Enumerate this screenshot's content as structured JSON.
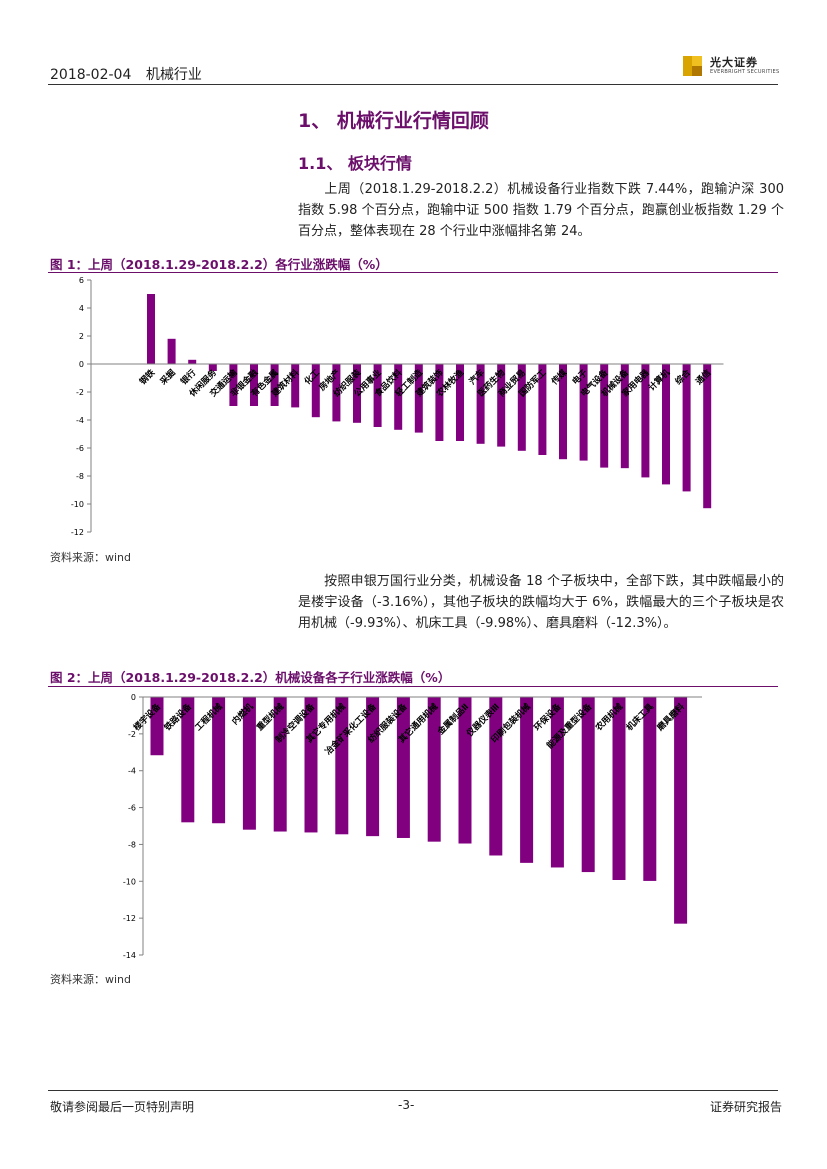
{
  "header": {
    "date": "2018-02-04",
    "industry": "机械行业",
    "brand_cn": "光大证券",
    "brand_en": "EVERBRIGHT SECURITIES"
  },
  "section": {
    "title": "1、 机械行业行情回顾",
    "subtitle": "1.1、 板块行情"
  },
  "paragraphs": [
    "上周（2018.1.29-2018.2.2）机械设备行业指数下跌 7.44%，跑输沪深 300 指数 5.98 个百分点，跑输中证 500 指数 1.79 个百分点，跑赢创业板指数 1.29 个百分点，整体表现在 28 个行业中涨幅排名第 24。",
    "按照申银万国行业分类，机械设备 18 个子板块中，全部下跌，其中跌幅最小的是楼宇设备（-3.16%），其他子板块的跌幅均大于 6%，跌幅最大的三个子板块是农用机械（-9.93%）、机床工具（-9.98%）、磨具磨料（-12.3%）。"
  ],
  "figures": [
    {
      "title": "图 1：上周（2018.1.29-2018.2.2）各行业涨跌幅（%）",
      "source": "资料来源：wind"
    },
    {
      "title": "图 2：上周（2018.1.29-2018.2.2）机械设备各子行业涨跌幅（%）",
      "source": "资料来源：wind"
    }
  ],
  "footer": {
    "disclaimer": "敬请参阅最后一页特别声明",
    "page": "-3-",
    "doc_type": "证券研究报告"
  },
  "colors": {
    "bar": "#800080",
    "heading": "#6b0f6b"
  },
  "chart_data": [
    {
      "type": "bar",
      "title": "图 1：上周（2018.1.29-2018.2.2）各行业涨跌幅（%）",
      "ylim": [
        -12,
        6
      ],
      "yticks": [
        6,
        4,
        2,
        0,
        -2,
        -4,
        -6,
        -8,
        -10,
        -12
      ],
      "categories": [
        "钢铁",
        "采掘",
        "银行",
        "休闲服务",
        "交通运输",
        "非银金融",
        "有色金属",
        "建筑材料",
        "化工",
        "房地产",
        "纺织服装",
        "公用事业",
        "食品饮料",
        "轻工制造",
        "建筑装饰",
        "农林牧渔",
        "汽车",
        "医药生物",
        "商业贸易",
        "国防军工",
        "传媒",
        "电子",
        "电气设备",
        "机械设备",
        "家用电器",
        "计算机",
        "综合",
        "通信"
      ],
      "values": [
        5.0,
        1.8,
        0.3,
        -0.5,
        -3.0,
        -3.0,
        -3.0,
        -3.1,
        -3.8,
        -4.1,
        -4.2,
        -4.5,
        -4.7,
        -4.9,
        -5.5,
        -5.5,
        -5.7,
        -5.9,
        -6.2,
        -6.5,
        -6.8,
        -6.9,
        -7.4,
        -7.44,
        -8.1,
        -8.6,
        -9.1,
        -10.3
      ]
    },
    {
      "type": "bar",
      "title": "图 2：上周（2018.1.29-2018.2.2）机械设备各子行业涨跌幅（%）",
      "ylim": [
        -14,
        0
      ],
      "yticks": [
        0,
        -2,
        -4,
        -6,
        -8,
        -10,
        -12,
        -14
      ],
      "categories": [
        "楼宇设备",
        "铁路设备",
        "工程机械",
        "内燃机",
        "重型机械",
        "制冷空调设备",
        "其它专用机械",
        "冶金矿采化工设备",
        "纺织服装设备",
        "其它通用机械",
        "金属制品Ⅱ",
        "仪器仪表Ⅲ",
        "印刷包装机械",
        "环保设备",
        "能源及重型设备",
        "农用机械",
        "机床工具",
        "磨具磨料"
      ],
      "values": [
        -3.16,
        -6.8,
        -6.85,
        -7.2,
        -7.3,
        -7.35,
        -7.45,
        -7.55,
        -7.65,
        -7.85,
        -7.95,
        -8.6,
        -9.0,
        -9.25,
        -9.5,
        -9.93,
        -9.98,
        -12.3
      ]
    }
  ]
}
